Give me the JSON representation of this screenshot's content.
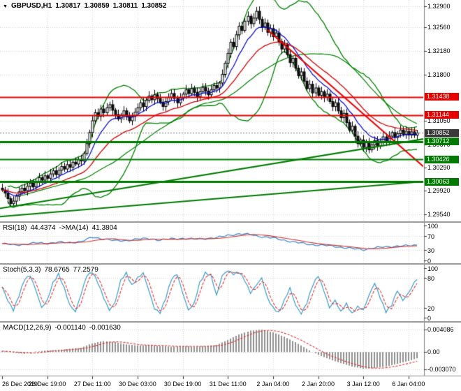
{
  "icons": {
    "chart_arrow": "▼"
  },
  "colors": {
    "background": "#ffffff",
    "grid": "#d6d6d6",
    "candle_border": "#000000",
    "bull": "#ffffff",
    "bear": "#151515",
    "bollinger": "#008000",
    "ma_mid": "#008000",
    "ma_fast": "#0000c8",
    "ma_slow": "#d00000",
    "resistance": "#e60000",
    "support": "#007a00",
    "trend_down": "#e60000",
    "trend_up": "#007a00",
    "current_price_bg": "#3a3a3a",
    "rsi_line": "#3a87c8",
    "rsi_ma": "#d23030",
    "stoch_main": "#3a9bc8",
    "stoch_signal": "#e03030",
    "macd_hist": "#909090",
    "macd_signal": "#e03030"
  },
  "main": {
    "symbol": "GBPUSD,H1",
    "open": "1.30817",
    "high": "1.30859",
    "low": "1.30811",
    "close": "1.30852"
  },
  "indicators": {
    "rsi": {
      "name": "RSI(18)",
      "value": "44.4374",
      "ma_name": "->MA(14)",
      "ma_value": "41.3804",
      "axis": [
        100,
        70,
        30,
        0
      ],
      "guides": [
        70,
        30
      ]
    },
    "stoch": {
      "name": "Stoch(5,3,3)",
      "value": "78.6765",
      "signal_value": "77.2579",
      "axis": [
        100,
        80,
        20,
        0
      ],
      "guides": [
        80,
        20
      ]
    },
    "macd": {
      "name": "MACD(12,26,9)",
      "value": "-0.001140",
      "signal_value": "-0.001630",
      "axis_labels": [
        {
          "v": 0.004086,
          "s": "0.004086"
        },
        {
          "v": 0,
          "s": "0.00"
        },
        {
          "v": -0.00307,
          "s": "-0.003070"
        }
      ]
    }
  },
  "chart_data": {
    "type": "candlestick",
    "symbol": "GBPUSD",
    "timeframe": "H1",
    "n_bars": 148,
    "current_price": 1.30852,
    "peak_high": 1.3289,
    "price_axis": {
      "scale_max": 1.3298,
      "scale_min": 1.2948,
      "ticks": [
        1.329,
        1.3256,
        1.3218,
        1.318,
        1.3105,
        1.3067,
        1.3029,
        1.2992,
        1.2954
      ]
    },
    "x_labels": [
      {
        "bar": 0,
        "label": "26 Dec 2019"
      },
      {
        "bar": 16,
        "label": "26 Dec 19:00"
      },
      {
        "bar": 32,
        "label": "27 Dec 11:00"
      },
      {
        "bar": 48,
        "label": "30 Dec 03:00"
      },
      {
        "bar": 64,
        "label": "30 Dec 19:00"
      },
      {
        "bar": 80,
        "label": "31 Dec 11:00"
      },
      {
        "bar": 96,
        "label": "2 Jan 04:00"
      },
      {
        "bar": 112,
        "label": "2 Jan 20:00"
      },
      {
        "bar": 128,
        "label": "3 Jan 12:00"
      },
      {
        "bar": 144,
        "label": "6 Jan 04:00"
      }
    ],
    "closes": [
      1.2993,
      1.2988,
      1.2979,
      1.2971,
      1.2975,
      1.2983,
      1.299,
      1.2996,
      1.2992,
      1.2999,
      1.3004,
      1.2998,
      1.3006,
      1.3013,
      1.3009,
      1.3016,
      1.3012,
      1.3019,
      1.3024,
      1.3018,
      1.3025,
      1.3031,
      1.3027,
      1.3034,
      1.303,
      1.3038,
      1.3035,
      1.3042,
      1.304,
      1.3052,
      1.3068,
      1.3086,
      1.3105,
      1.3118,
      1.3112,
      1.3124,
      1.3118,
      1.3126,
      1.3131,
      1.3122,
      1.3115,
      1.3108,
      1.3114,
      1.3121,
      1.3112,
      1.3105,
      1.3112,
      1.3119,
      1.3126,
      1.3134,
      1.3128,
      1.3138,
      1.3145,
      1.3139,
      1.3147,
      1.3141,
      1.3135,
      1.3128,
      1.3136,
      1.3143,
      1.3149,
      1.3141,
      1.3134,
      1.3142,
      1.3148,
      1.3155,
      1.3149,
      1.3157,
      1.3151,
      1.3144,
      1.3152,
      1.3159,
      1.3153,
      1.3147,
      1.3155,
      1.3162,
      1.3158,
      1.3166,
      1.318,
      1.3198,
      1.3214,
      1.3232,
      1.3225,
      1.3244,
      1.3258,
      1.3251,
      1.3266,
      1.3274,
      1.3262,
      1.3271,
      1.3282,
      1.3269,
      1.3256,
      1.3263,
      1.3248,
      1.3254,
      1.3241,
      1.3247,
      1.3233,
      1.3221,
      1.3228,
      1.3212,
      1.3199,
      1.3206,
      1.319,
      1.3178,
      1.3184,
      1.3169,
      1.3157,
      1.3164,
      1.315,
      1.3158,
      1.3146,
      1.3152,
      1.3143,
      1.3148,
      1.3136,
      1.3128,
      1.3134,
      1.3121,
      1.311,
      1.3117,
      1.3102,
      1.309,
      1.3096,
      1.308,
      1.3068,
      1.3074,
      1.3062,
      1.307,
      1.3058,
      1.3066,
      1.3073,
      1.3064,
      1.3071,
      1.3079,
      1.3072,
      1.308,
      1.3086,
      1.3078,
      1.3084,
      1.309,
      1.3083,
      1.3088,
      1.3082,
      1.3087,
      1.30817,
      1.30852
    ],
    "levels": [
      {
        "price": 1.31438,
        "color": "resistance",
        "width": 2
      },
      {
        "price": 1.31144,
        "color": "resistance",
        "width": 2
      },
      {
        "price": 1.30712,
        "color": "support",
        "width": 3
      },
      {
        "price": 1.30426,
        "color": "support",
        "width": 2
      },
      {
        "price": 1.30063,
        "color": "support",
        "width": 3
      }
    ],
    "trendlines": [
      {
        "name": "descending-resistance-line",
        "from_bar": 94,
        "from_price": 1.3252,
        "to_bar": 150,
        "to_price": 1.3028,
        "color": "trend_down",
        "width": 2
      },
      {
        "name": "ascending-trendline-upper",
        "from_bar": -1,
        "from_price": 1.2963,
        "to_bar": 150,
        "to_price": 1.3076,
        "color": "trend_up",
        "width": 2
      },
      {
        "name": "ascending-trendline-lower",
        "from_bar": -1,
        "from_price": 1.295,
        "to_bar": 150,
        "to_price": 1.3007,
        "color": "trend_up",
        "width": 2
      }
    ],
    "overlays": {
      "bollinger_period": 20,
      "bollinger_dev": 2,
      "ma_fast_period": 10,
      "ma_slow_period": 24,
      "ma_mid_period": 40
    },
    "rsi_points": [
      [
        0,
        48
      ],
      [
        4,
        44
      ],
      [
        8,
        46
      ],
      [
        12,
        50
      ],
      [
        16,
        49
      ],
      [
        20,
        52
      ],
      [
        24,
        51
      ],
      [
        28,
        54
      ],
      [
        32,
        66
      ],
      [
        36,
        62
      ],
      [
        40,
        56
      ],
      [
        44,
        57
      ],
      [
        48,
        61
      ],
      [
        52,
        63
      ],
      [
        56,
        58
      ],
      [
        60,
        62
      ],
      [
        64,
        63
      ],
      [
        68,
        61
      ],
      [
        72,
        63
      ],
      [
        76,
        65
      ],
      [
        80,
        72
      ],
      [
        84,
        76
      ],
      [
        88,
        74
      ],
      [
        92,
        68
      ],
      [
        96,
        64
      ],
      [
        100,
        58
      ],
      [
        104,
        52
      ],
      [
        108,
        47
      ],
      [
        112,
        44
      ],
      [
        116,
        42
      ],
      [
        120,
        38
      ],
      [
        124,
        34
      ],
      [
        128,
        31
      ],
      [
        132,
        36
      ],
      [
        136,
        39
      ],
      [
        140,
        41
      ],
      [
        144,
        42
      ],
      [
        147,
        44.4
      ]
    ],
    "stoch_points": [
      [
        0,
        62
      ],
      [
        2,
        35
      ],
      [
        4,
        15
      ],
      [
        6,
        45
      ],
      [
        8,
        78
      ],
      [
        10,
        85
      ],
      [
        12,
        55
      ],
      [
        14,
        20
      ],
      [
        16,
        35
      ],
      [
        18,
        70
      ],
      [
        20,
        88
      ],
      [
        22,
        60
      ],
      [
        24,
        25
      ],
      [
        26,
        12
      ],
      [
        28,
        48
      ],
      [
        30,
        85
      ],
      [
        32,
        92
      ],
      [
        34,
        70
      ],
      [
        36,
        40
      ],
      [
        38,
        15
      ],
      [
        40,
        30
      ],
      [
        42,
        75
      ],
      [
        44,
        90
      ],
      [
        46,
        65
      ],
      [
        48,
        80
      ],
      [
        50,
        90
      ],
      [
        52,
        55
      ],
      [
        54,
        18
      ],
      [
        56,
        10
      ],
      [
        58,
        40
      ],
      [
        60,
        78
      ],
      [
        62,
        88
      ],
      [
        64,
        50
      ],
      [
        66,
        15
      ],
      [
        68,
        28
      ],
      [
        70,
        70
      ],
      [
        72,
        90
      ],
      [
        74,
        85
      ],
      [
        76,
        45
      ],
      [
        78,
        85
      ],
      [
        80,
        95
      ],
      [
        82,
        88
      ],
      [
        84,
        92
      ],
      [
        86,
        75
      ],
      [
        88,
        50
      ],
      [
        90,
        65
      ],
      [
        92,
        80
      ],
      [
        94,
        40
      ],
      [
        96,
        20
      ],
      [
        98,
        10
      ],
      [
        100,
        35
      ],
      [
        102,
        60
      ],
      [
        104,
        25
      ],
      [
        106,
        8
      ],
      [
        108,
        30
      ],
      [
        110,
        65
      ],
      [
        112,
        85
      ],
      [
        114,
        55
      ],
      [
        116,
        20
      ],
      [
        118,
        35
      ],
      [
        120,
        12
      ],
      [
        122,
        28
      ],
      [
        124,
        8
      ],
      [
        126,
        22
      ],
      [
        128,
        15
      ],
      [
        130,
        45
      ],
      [
        132,
        70
      ],
      [
        134,
        40
      ],
      [
        136,
        12
      ],
      [
        138,
        25
      ],
      [
        140,
        55
      ],
      [
        142,
        35
      ],
      [
        144,
        50
      ],
      [
        146,
        70
      ],
      [
        147,
        78.7
      ]
    ],
    "macd_points": [
      [
        0,
        0.0002
      ],
      [
        4,
        -0.0001
      ],
      [
        8,
        -0.0003
      ],
      [
        12,
        0.0001
      ],
      [
        16,
        0.0003
      ],
      [
        20,
        0.0004
      ],
      [
        24,
        0.0006
      ],
      [
        28,
        0.0008
      ],
      [
        32,
        0.0016
      ],
      [
        36,
        0.002
      ],
      [
        40,
        0.0018
      ],
      [
        44,
        0.0014
      ],
      [
        48,
        0.0012
      ],
      [
        52,
        0.0013
      ],
      [
        56,
        0.0011
      ],
      [
        60,
        0.001
      ],
      [
        64,
        0.0011
      ],
      [
        68,
        0.001
      ],
      [
        72,
        0.0011
      ],
      [
        76,
        0.0013
      ],
      [
        80,
        0.0022
      ],
      [
        84,
        0.0032
      ],
      [
        88,
        0.0039
      ],
      [
        92,
        0.0041
      ],
      [
        96,
        0.0036
      ],
      [
        100,
        0.0028
      ],
      [
        104,
        0.0018
      ],
      [
        108,
        0.0006
      ],
      [
        112,
        -0.0005
      ],
      [
        116,
        -0.0013
      ],
      [
        120,
        -0.002
      ],
      [
        124,
        -0.0026
      ],
      [
        128,
        -0.003
      ],
      [
        132,
        -0.0029
      ],
      [
        136,
        -0.0026
      ],
      [
        140,
        -0.0021
      ],
      [
        144,
        -0.0016
      ],
      [
        147,
        -0.00114
      ]
    ],
    "macd_scale": {
      "max": 0.0046,
      "min": -0.0035
    }
  }
}
